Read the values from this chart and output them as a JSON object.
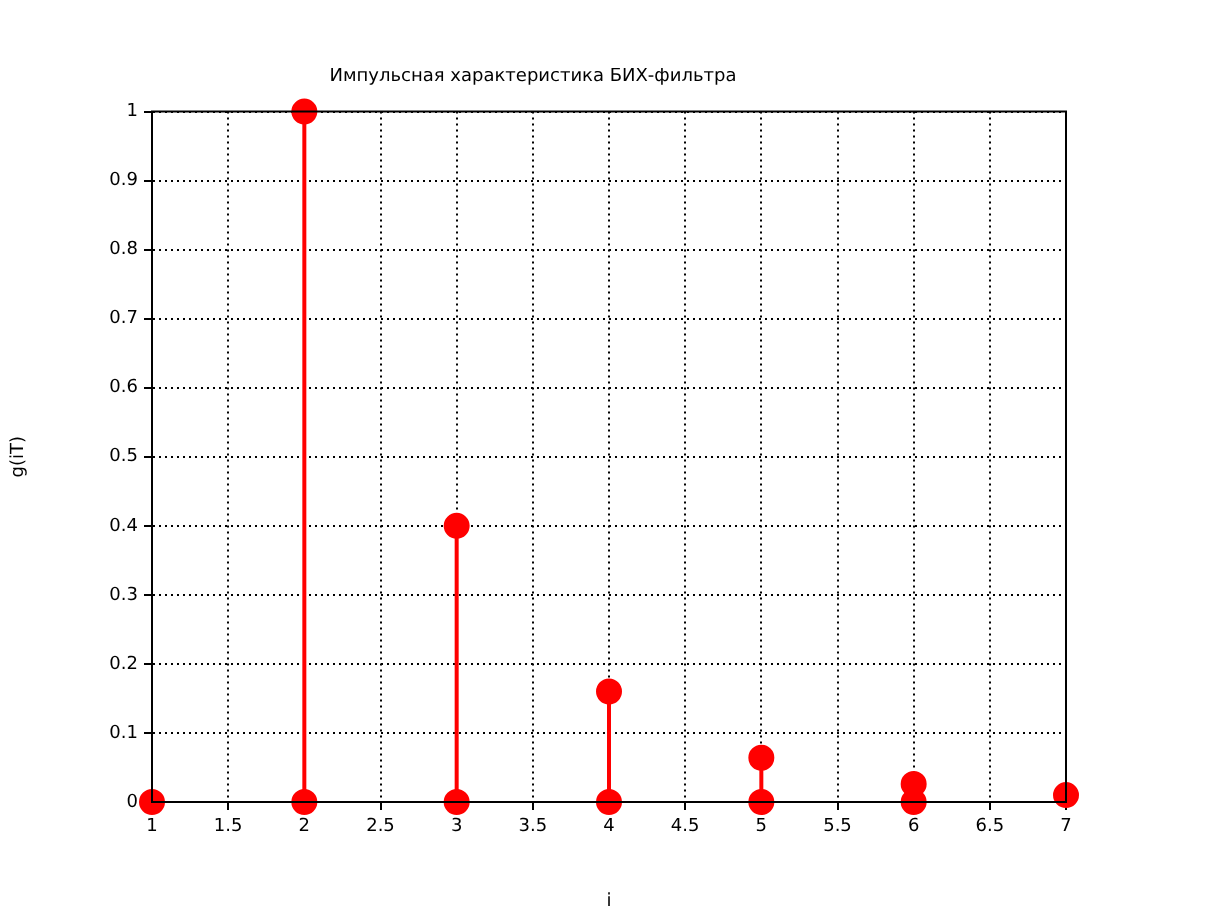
{
  "chart_data": {
    "type": "lollipop",
    "title": "Импульсная характеристика БИХ-фильтра",
    "xlabel": "i",
    "ylabel": "g(iT)",
    "x": [
      1,
      2,
      3,
      4,
      5,
      6,
      7
    ],
    "series": [
      {
        "color": "#ff0000",
        "values": [
          0,
          1,
          0.4,
          0.16,
          0.064,
          0.026,
          0.01
        ]
      },
      {
        "type": "scatter",
        "color": "#ff0000",
        "values": [
          null,
          0,
          0,
          0,
          0,
          0,
          null
        ]
      }
    ],
    "marker": "circle",
    "grid": true,
    "xlim": [
      1,
      7
    ],
    "xticks": [
      1,
      1.5,
      2,
      2.5,
      3,
      3.5,
      4,
      4.5,
      5,
      5.5,
      6,
      6.5,
      7
    ],
    "ylim": [
      0,
      1
    ],
    "yticks": [
      0,
      0.1,
      0.2,
      0.3,
      0.4,
      0.5,
      0.6,
      0.7,
      0.8,
      0.9,
      1
    ]
  }
}
